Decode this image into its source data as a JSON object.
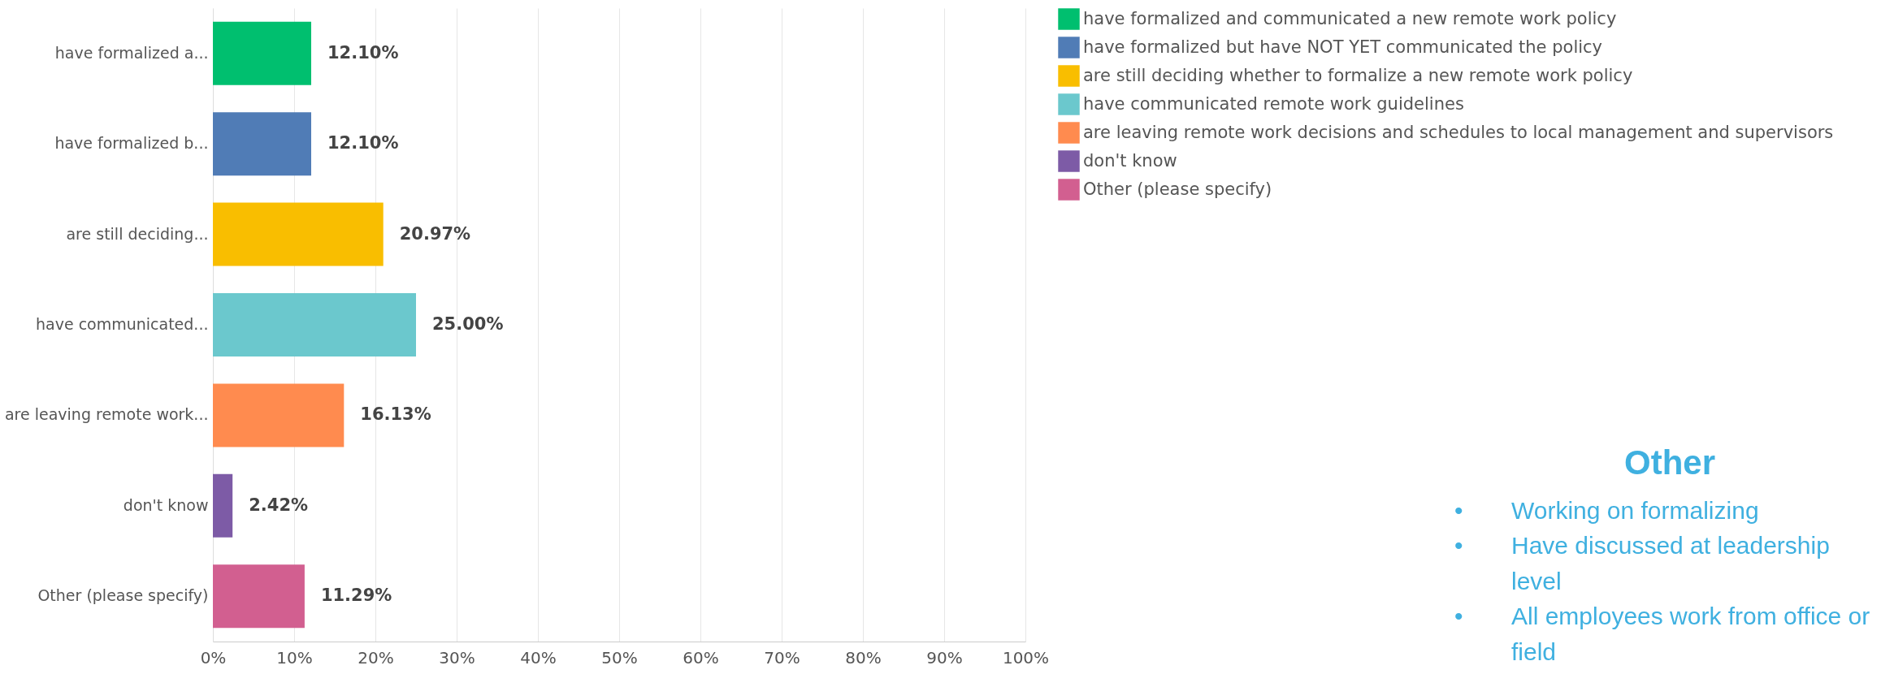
{
  "chart_data": {
    "type": "bar",
    "orientation": "horizontal",
    "categories": [
      "have formalized a...",
      "have formalized b...",
      "are still deciding...",
      "have communicated...",
      "are leaving remote work...",
      "don't know",
      "Other (please specify)"
    ],
    "series": [
      {
        "name": "have formalized and communicated a new remote work policy",
        "color": "#00bf6f",
        "values": [
          12.1,
          null,
          null,
          null,
          null,
          null,
          null
        ],
        "value_labels": [
          "12.10%",
          null,
          null,
          null,
          null,
          null,
          null
        ]
      },
      {
        "name": "have formalized but have NOT YET communicated the policy",
        "color": "#507cb6",
        "values": [
          null,
          12.1,
          null,
          null,
          null,
          null,
          null
        ],
        "value_labels": [
          null,
          "12.10%",
          null,
          null,
          null,
          null,
          null
        ]
      },
      {
        "name": "are still deciding whether to formalize a new remote work policy",
        "color": "#f9be00",
        "values": [
          null,
          null,
          20.97,
          null,
          null,
          null,
          null
        ],
        "value_labels": [
          null,
          null,
          "20.97%",
          null,
          null,
          null,
          null
        ]
      },
      {
        "name": "have communicated  remote work guidelines",
        "color": "#6bc8cd",
        "values": [
          null,
          null,
          null,
          25.0,
          null,
          null,
          null
        ],
        "value_labels": [
          null,
          null,
          null,
          "25.00%",
          null,
          null,
          null
        ]
      },
      {
        "name": "are leaving remote work decisions and schedules to local management and supervisors",
        "color": "#ff8b4f",
        "values": [
          null,
          null,
          null,
          null,
          16.13,
          null,
          null
        ],
        "value_labels": [
          null,
          null,
          null,
          null,
          "16.13%",
          null,
          null
        ]
      },
      {
        "name": "don't know",
        "color": "#7d5ba6",
        "values": [
          null,
          null,
          null,
          null,
          null,
          2.42,
          null
        ],
        "value_labels": [
          null,
          null,
          null,
          null,
          null,
          "2.42%",
          null
        ]
      },
      {
        "name": "Other (please specify)",
        "color": "#d25f90",
        "values": [
          null,
          null,
          null,
          null,
          null,
          null,
          11.29
        ],
        "value_labels": [
          null,
          null,
          null,
          null,
          null,
          null,
          "11.29%"
        ]
      }
    ],
    "xlim": [
      0,
      100
    ],
    "xticks": [
      {
        "value": 0,
        "label": "0%"
      },
      {
        "value": 10,
        "label": "10%"
      },
      {
        "value": 20,
        "label": "20%"
      },
      {
        "value": 30,
        "label": "30%"
      },
      {
        "value": 40,
        "label": "40%"
      },
      {
        "value": 50,
        "label": "50%"
      },
      {
        "value": 60,
        "label": "60%"
      },
      {
        "value": 70,
        "label": "70%"
      },
      {
        "value": 80,
        "label": "80%"
      },
      {
        "value": 90,
        "label": "90%"
      },
      {
        "value": 100,
        "label": "100%"
      }
    ],
    "grid": "x",
    "legend": "right",
    "annotations": [
      "Other",
      "• Working on formalizing",
      "• Have discussed at leadership level",
      "• All employees work from office or field"
    ]
  }
}
